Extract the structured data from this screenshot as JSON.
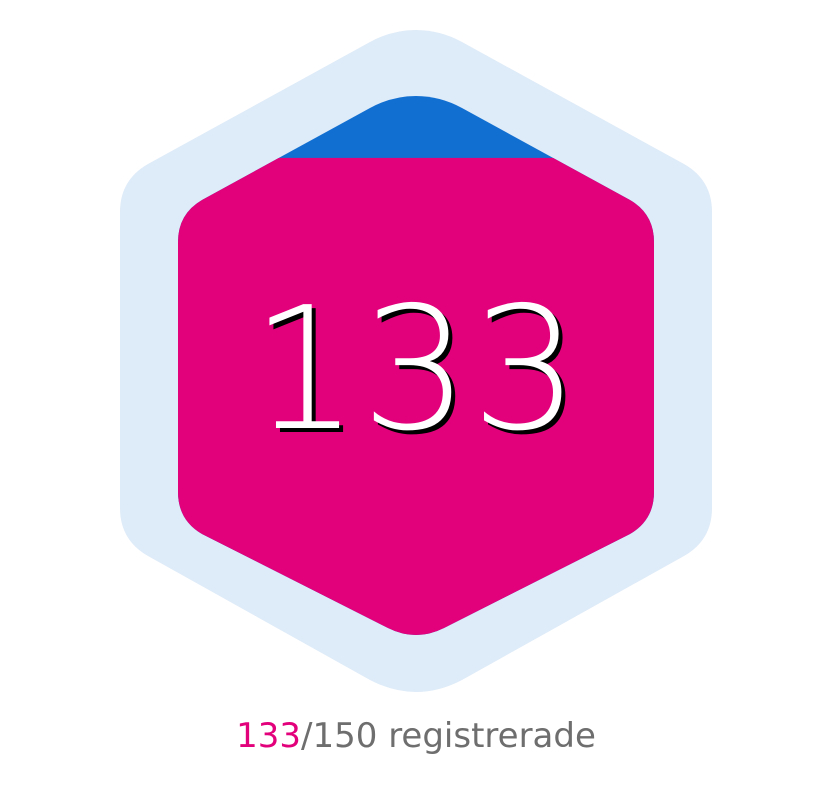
{
  "badge": {
    "count": "133",
    "progress_fraction": 0.8867,
    "colors": {
      "halo": "#deebf8",
      "fill": "#e3007b",
      "remaining": "#126fd2",
      "caption_text": "#6e6e6e"
    }
  },
  "caption": {
    "current": "133",
    "separator": "/",
    "total": "150",
    "suffix": " registrerade"
  }
}
